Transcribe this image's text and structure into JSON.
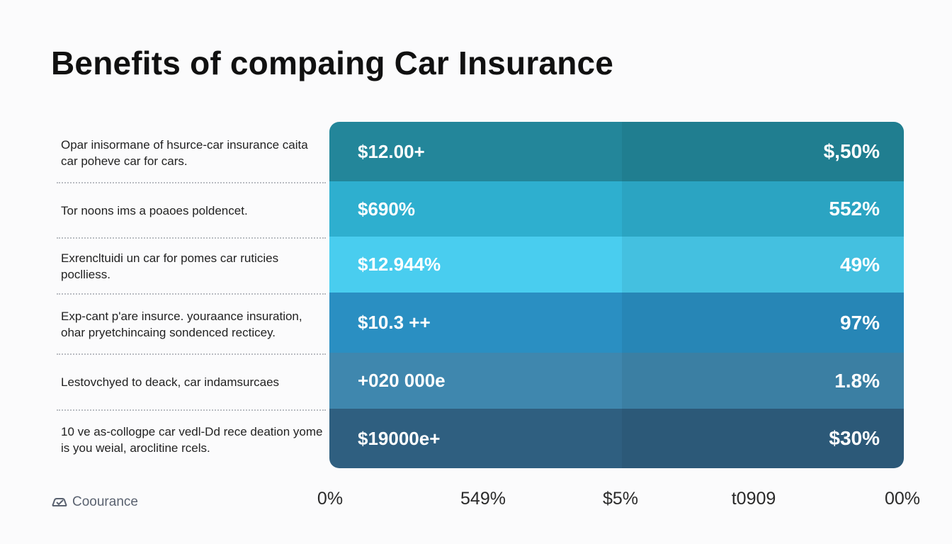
{
  "title": "Benefits of compaing Car Insurance",
  "brand": {
    "name": "Coourance",
    "icon": "car-logo-icon"
  },
  "chart_data": {
    "type": "table",
    "title": "Benefits of compaing Car Insurance",
    "rows": [
      {
        "label": "Opar inisormane of hsurce-car insurance caita car pohеve car for cars.",
        "left_value": "$12.00+",
        "right_value": "$,50%",
        "color": "#23869a"
      },
      {
        "label": "Tor noons ims a poaoes poldencet.",
        "left_value": "$690%",
        "right_value": "552%",
        "color": "#2eafcf"
      },
      {
        "label": "Exrencltuidi un car for pomes car ruticies poclliess.",
        "left_value": "$12.944%",
        "right_value": "49%",
        "color": "#49cdef"
      },
      {
        "label": "Exp-cant p'are insurce. youraance insuration, ohar pryetchincaing sondenced recticey.",
        "left_value": "$10.3 ++",
        "right_value": "97%",
        "color": "#2a8fc2"
      },
      {
        "label": "Lestovchyed to deack, car indamsurcaes",
        "left_value": "+020 000e",
        "right_value": "1.8%",
        "color": "#3f87ae"
      },
      {
        "label": "10 ve as-collogpe car vedl-Dd rece deation yome is you weial, aroclitine rcels.",
        "left_value": "$19000e+",
        "right_value": "$30%",
        "color": "#2f5f80"
      }
    ],
    "x_ticks": [
      "0%",
      "549%",
      "$5%",
      "t0909",
      "00%"
    ]
  }
}
